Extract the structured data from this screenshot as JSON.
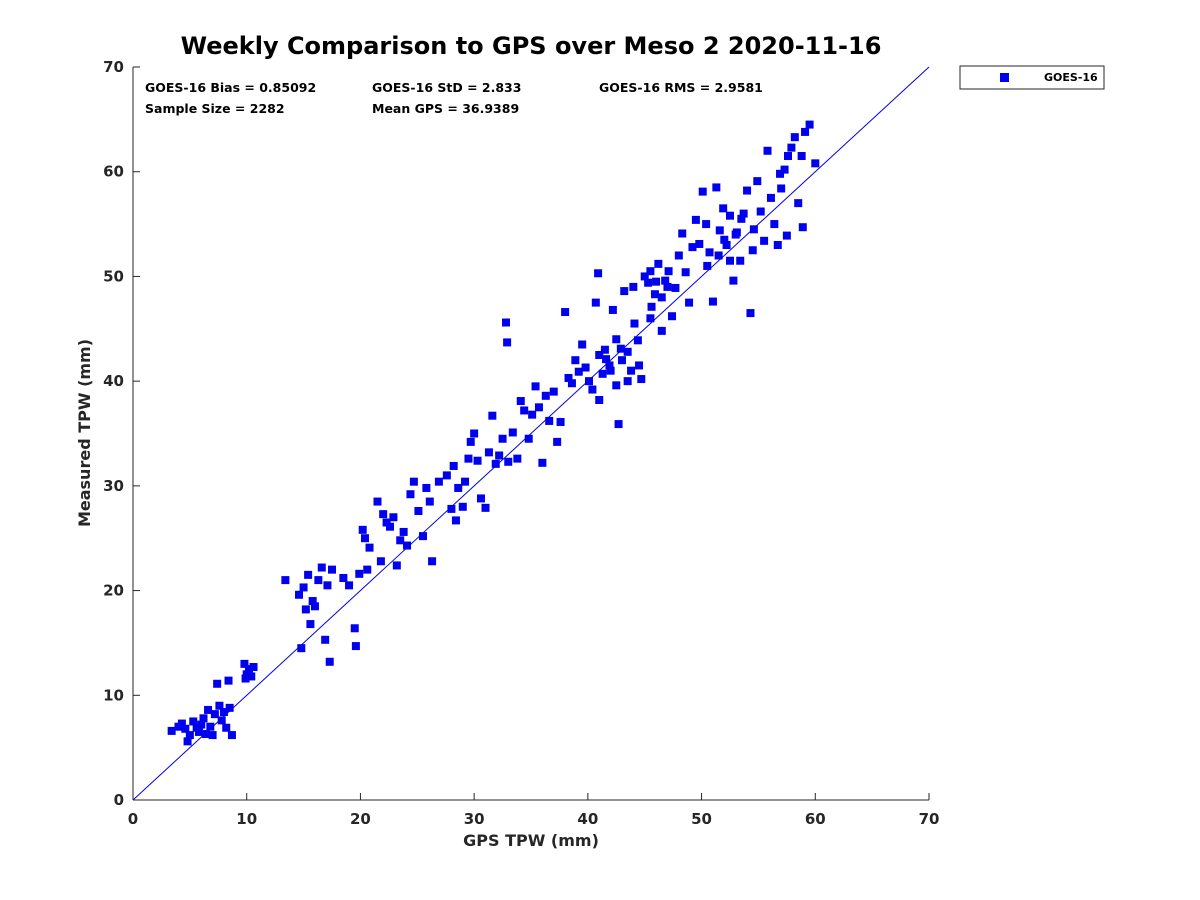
{
  "chart_data": {
    "type": "scatter",
    "title": "Weekly Comparison to GPS over Meso 2 2020-11-16",
    "xlabel": "GPS TPW (mm)",
    "ylabel": "Measured TPW (mm)",
    "xlim": [
      0,
      70
    ],
    "ylim": [
      0,
      70
    ],
    "xticks": [
      "0",
      "10",
      "20",
      "30",
      "40",
      "50",
      "60",
      "70"
    ],
    "yticks": [
      "0",
      "10",
      "20",
      "30",
      "40",
      "50",
      "60",
      "70"
    ],
    "legend": [
      "GOES-16"
    ],
    "legend_position": "outside top-right",
    "stats": {
      "bias": "GOES-16 Bias = 0.85092",
      "std": "GOES-16 StD = 2.833",
      "rms": "GOES-16 RMS = 2.9581",
      "sample": "Sample Size = 2282",
      "mean": "Mean GPS = 36.9389"
    },
    "reference_line": {
      "x": [
        0,
        70
      ],
      "y": [
        0,
        70
      ]
    },
    "series": [
      {
        "name": "GOES-16",
        "color": "#0000ee",
        "points": [
          [
            3.4,
            6.6
          ],
          [
            4.0,
            7.0
          ],
          [
            4.3,
            7.3
          ],
          [
            4.6,
            6.8
          ],
          [
            4.8,
            5.6
          ],
          [
            5.0,
            6.2
          ],
          [
            5.3,
            7.5
          ],
          [
            5.6,
            6.9
          ],
          [
            5.8,
            6.5
          ],
          [
            6.0,
            7.2
          ],
          [
            6.2,
            7.8
          ],
          [
            6.4,
            6.3
          ],
          [
            6.6,
            8.6
          ],
          [
            6.8,
            7.0
          ],
          [
            7.0,
            6.2
          ],
          [
            7.2,
            8.2
          ],
          [
            7.4,
            11.1
          ],
          [
            7.6,
            9.0
          ],
          [
            7.8,
            7.6
          ],
          [
            8.0,
            8.4
          ],
          [
            8.2,
            6.9
          ],
          [
            8.4,
            11.4
          ],
          [
            8.5,
            8.8
          ],
          [
            8.7,
            6.2
          ],
          [
            9.8,
            13.0
          ],
          [
            10.0,
            12.0
          ],
          [
            10.2,
            12.5
          ],
          [
            10.4,
            11.8
          ],
          [
            10.6,
            12.7
          ],
          [
            9.9,
            11.6
          ],
          [
            13.4,
            21.0
          ],
          [
            14.6,
            19.6
          ],
          [
            14.8,
            14.5
          ],
          [
            15.0,
            20.3
          ],
          [
            15.2,
            18.2
          ],
          [
            15.4,
            21.5
          ],
          [
            15.6,
            16.8
          ],
          [
            15.8,
            19.0
          ],
          [
            16.0,
            18.5
          ],
          [
            16.3,
            21.0
          ],
          [
            16.6,
            22.2
          ],
          [
            16.9,
            15.3
          ],
          [
            17.1,
            20.5
          ],
          [
            17.3,
            13.2
          ],
          [
            17.5,
            22.0
          ],
          [
            18.5,
            21.2
          ],
          [
            19.0,
            20.5
          ],
          [
            19.5,
            16.4
          ],
          [
            19.6,
            14.7
          ],
          [
            19.9,
            21.6
          ],
          [
            20.2,
            25.8
          ],
          [
            20.4,
            25.0
          ],
          [
            20.6,
            22.0
          ],
          [
            20.8,
            24.1
          ],
          [
            21.5,
            28.5
          ],
          [
            21.8,
            22.8
          ],
          [
            22.0,
            27.3
          ],
          [
            22.3,
            26.5
          ],
          [
            22.6,
            26.1
          ],
          [
            22.9,
            27.0
          ],
          [
            23.2,
            22.4
          ],
          [
            23.5,
            24.8
          ],
          [
            23.8,
            25.6
          ],
          [
            24.1,
            24.3
          ],
          [
            24.4,
            29.2
          ],
          [
            24.7,
            30.4
          ],
          [
            25.1,
            27.6
          ],
          [
            25.5,
            25.2
          ],
          [
            25.8,
            29.8
          ],
          [
            26.1,
            28.5
          ],
          [
            26.3,
            22.8
          ],
          [
            26.9,
            30.4
          ],
          [
            27.6,
            31.0
          ],
          [
            28.0,
            27.8
          ],
          [
            28.2,
            31.9
          ],
          [
            28.4,
            26.7
          ],
          [
            28.6,
            29.8
          ],
          [
            29.0,
            28.0
          ],
          [
            29.2,
            30.4
          ],
          [
            29.5,
            32.6
          ],
          [
            29.7,
            34.2
          ],
          [
            30.0,
            35.0
          ],
          [
            30.3,
            32.4
          ],
          [
            30.6,
            28.8
          ],
          [
            31.0,
            27.9
          ],
          [
            31.3,
            33.2
          ],
          [
            31.6,
            36.7
          ],
          [
            31.9,
            32.1
          ],
          [
            32.2,
            32.9
          ],
          [
            32.5,
            34.5
          ],
          [
            32.8,
            45.6
          ],
          [
            32.9,
            43.7
          ],
          [
            33.0,
            32.3
          ],
          [
            33.4,
            35.1
          ],
          [
            33.8,
            32.6
          ],
          [
            34.1,
            38.1
          ],
          [
            34.4,
            37.2
          ],
          [
            34.8,
            34.5
          ],
          [
            35.1,
            36.8
          ],
          [
            35.4,
            39.5
          ],
          [
            35.7,
            37.5
          ],
          [
            36.0,
            32.2
          ],
          [
            36.3,
            38.6
          ],
          [
            36.6,
            36.2
          ],
          [
            37.0,
            39.0
          ],
          [
            37.3,
            34.2
          ],
          [
            37.6,
            36.1
          ],
          [
            38.0,
            46.6
          ],
          [
            38.3,
            40.3
          ],
          [
            38.6,
            39.8
          ],
          [
            38.9,
            42.0
          ],
          [
            39.2,
            40.9
          ],
          [
            39.5,
            43.5
          ],
          [
            39.8,
            41.3
          ],
          [
            40.1,
            40.0
          ],
          [
            40.4,
            39.2
          ],
          [
            40.7,
            47.5
          ],
          [
            40.9,
            50.3
          ],
          [
            41.0,
            38.2
          ],
          [
            41.3,
            40.7
          ],
          [
            41.6,
            42.1
          ],
          [
            41.9,
            41.5
          ],
          [
            42.2,
            46.8
          ],
          [
            42.5,
            39.6
          ],
          [
            42.7,
            35.9
          ],
          [
            42.9,
            43.1
          ],
          [
            43.2,
            48.6
          ],
          [
            43.5,
            42.8
          ],
          [
            43.8,
            41.0
          ],
          [
            44.1,
            45.5
          ],
          [
            44.4,
            43.9
          ],
          [
            44.7,
            40.2
          ],
          [
            45.0,
            50.0
          ],
          [
            45.3,
            49.4
          ],
          [
            45.6,
            47.1
          ],
          [
            45.9,
            48.3
          ],
          [
            46.2,
            51.2
          ],
          [
            46.5,
            44.8
          ],
          [
            46.8,
            49.6
          ],
          [
            47.1,
            50.5
          ],
          [
            47.4,
            46.2
          ],
          [
            47.7,
            48.9
          ],
          [
            48.0,
            52.0
          ],
          [
            48.3,
            54.1
          ],
          [
            48.6,
            50.4
          ],
          [
            48.9,
            47.5
          ],
          [
            49.2,
            52.8
          ],
          [
            49.5,
            55.4
          ],
          [
            49.8,
            53.1
          ],
          [
            50.1,
            58.1
          ],
          [
            50.4,
            55.0
          ],
          [
            50.7,
            52.3
          ],
          [
            51.0,
            47.6
          ],
          [
            51.3,
            58.5
          ],
          [
            51.6,
            54.4
          ],
          [
            51.9,
            56.5
          ],
          [
            52.2,
            53.0
          ],
          [
            52.5,
            55.8
          ],
          [
            52.8,
            49.6
          ],
          [
            53.1,
            54.2
          ],
          [
            53.4,
            51.5
          ],
          [
            53.7,
            56.0
          ],
          [
            54.0,
            58.2
          ],
          [
            54.3,
            46.5
          ],
          [
            54.6,
            54.5
          ],
          [
            54.9,
            59.1
          ],
          [
            55.2,
            56.2
          ],
          [
            55.5,
            53.4
          ],
          [
            55.8,
            62.0
          ],
          [
            56.1,
            57.5
          ],
          [
            56.4,
            55.0
          ],
          [
            56.7,
            53.0
          ],
          [
            57.0,
            58.4
          ],
          [
            57.3,
            60.2
          ],
          [
            57.6,
            61.5
          ],
          [
            57.9,
            62.3
          ],
          [
            58.2,
            63.3
          ],
          [
            58.5,
            57.0
          ],
          [
            58.8,
            61.5
          ],
          [
            59.1,
            63.8
          ],
          [
            59.5,
            64.5
          ],
          [
            60.0,
            60.8
          ],
          [
            58.9,
            54.7
          ],
          [
            57.5,
            53.9
          ],
          [
            56.9,
            59.8
          ],
          [
            44.0,
            49.0
          ],
          [
            46.0,
            49.5
          ],
          [
            47.0,
            49.0
          ],
          [
            45.5,
            50.5
          ],
          [
            46.5,
            48.0
          ],
          [
            43.0,
            42.0
          ],
          [
            42.0,
            41.0
          ],
          [
            41.5,
            43.0
          ],
          [
            43.5,
            40.0
          ],
          [
            42.5,
            44.0
          ],
          [
            41.0,
            42.5
          ],
          [
            44.5,
            41.5
          ],
          [
            45.5,
            46.0
          ],
          [
            52.0,
            53.5
          ],
          [
            53.0,
            54.0
          ],
          [
            51.5,
            52.0
          ],
          [
            50.5,
            51.0
          ],
          [
            54.5,
            52.5
          ],
          [
            53.5,
            55.5
          ],
          [
            52.5,
            51.5
          ]
        ]
      }
    ]
  }
}
